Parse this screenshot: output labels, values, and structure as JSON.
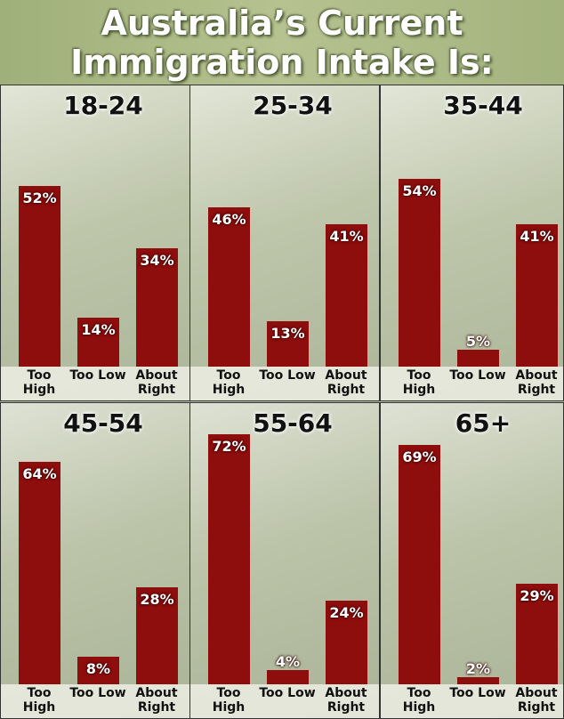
{
  "title": "Australia’s Current Immigration Intake Is:",
  "chart_data": [
    {
      "type": "bar",
      "title": "18-24",
      "categories": [
        "Too High",
        "Too Low",
        "About Right"
      ],
      "values": [
        52,
        14,
        34
      ],
      "value_labels": [
        "52%",
        "14%",
        "34%"
      ],
      "color": "#8e0d0d"
    },
    {
      "type": "bar",
      "title": "25-34",
      "categories": [
        "Too High",
        "Too Low",
        "About Right"
      ],
      "values": [
        46,
        13,
        41
      ],
      "value_labels": [
        "46%",
        "13%",
        "41%"
      ],
      "color": "#8e0d0d"
    },
    {
      "type": "bar",
      "title": "35-44",
      "categories": [
        "Too High",
        "Too Low",
        "About Right"
      ],
      "values": [
        54,
        5,
        41
      ],
      "value_labels": [
        "54%",
        "5%",
        "41%"
      ],
      "color": "#8e0d0d"
    },
    {
      "type": "bar",
      "title": "45-54",
      "categories": [
        "Too High",
        "Too Low",
        "About Right"
      ],
      "values": [
        64,
        8,
        28
      ],
      "value_labels": [
        "64%",
        "8%",
        "28%"
      ],
      "color": "#8e0d0d"
    },
    {
      "type": "bar",
      "title": "55-64",
      "categories": [
        "Too High",
        "Too Low",
        "About Right"
      ],
      "values": [
        72,
        4,
        24
      ],
      "value_labels": [
        "72%",
        "4%",
        "24%"
      ],
      "color": "#8e0d0d"
    },
    {
      "type": "bar",
      "title": "65+",
      "categories": [
        "Too High",
        "Too Low",
        "About Right"
      ],
      "values": [
        69,
        2,
        29
      ],
      "value_labels": [
        "69%",
        "2%",
        "29%"
      ],
      "color": "#8e0d0d"
    }
  ]
}
